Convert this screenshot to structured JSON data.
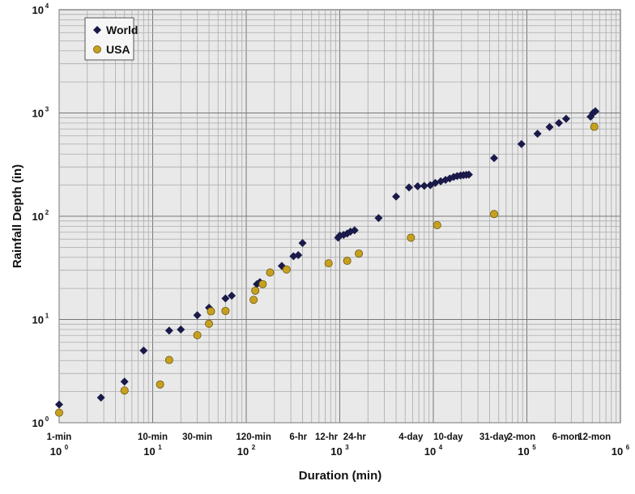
{
  "chart_data": {
    "type": "scatter",
    "xlabel": "Duration (min)",
    "ylabel": "Rainfall Depth (in)",
    "x_scale": "log",
    "y_scale": "log",
    "xlim": [
      1,
      1000000
    ],
    "ylim": [
      1,
      10000
    ],
    "grid": true,
    "legend_position": "top-left",
    "x_decade_labels": [
      "10",
      "10",
      "10",
      "10",
      "10",
      "10",
      "10"
    ],
    "x_decade_exponents": [
      "0",
      "1",
      "2",
      "3",
      "4",
      "5",
      "6"
    ],
    "y_decade_labels": [
      "10",
      "10",
      "10",
      "10",
      "10"
    ],
    "y_decade_exponents": [
      "0",
      "1",
      "2",
      "3",
      "4"
    ],
    "duration_labels": [
      {
        "text": "1-min",
        "x": 1
      },
      {
        "text": "10-min",
        "x": 10
      },
      {
        "text": "30-min",
        "x": 30
      },
      {
        "text": "120-min",
        "x": 120
      },
      {
        "text": "6-hr",
        "x": 360
      },
      {
        "text": "12-hr",
        "x": 720
      },
      {
        "text": "24-hr",
        "x": 1440
      },
      {
        "text": "4-day",
        "x": 5760
      },
      {
        "text": "10-day",
        "x": 14400
      },
      {
        "text": "31-day",
        "x": 44640
      },
      {
        "text": "2-mon",
        "x": 87600
      },
      {
        "text": "6-mon",
        "x": 262800
      },
      {
        "text": "12-mon",
        "x": 525600
      }
    ],
    "series": [
      {
        "name": "World",
        "marker": "diamond",
        "color": "#1a1a4a",
        "points": [
          [
            1,
            1.5
          ],
          [
            2.8,
            1.75
          ],
          [
            5,
            2.5
          ],
          [
            8,
            5
          ],
          [
            15,
            7.8
          ],
          [
            20,
            8
          ],
          [
            30,
            11
          ],
          [
            40,
            13
          ],
          [
            60,
            16
          ],
          [
            70,
            17
          ],
          [
            130,
            22
          ],
          [
            140,
            23
          ],
          [
            240,
            33
          ],
          [
            320,
            41
          ],
          [
            360,
            42
          ],
          [
            400,
            55
          ],
          [
            960,
            62
          ],
          [
            1000,
            65
          ],
          [
            1100,
            66
          ],
          [
            1200,
            68
          ],
          [
            1300,
            71
          ],
          [
            1440,
            73
          ],
          [
            2600,
            96
          ],
          [
            4000,
            155
          ],
          [
            5500,
            190
          ],
          [
            6800,
            195
          ],
          [
            8000,
            197
          ],
          [
            9300,
            200
          ],
          [
            10500,
            210
          ],
          [
            12000,
            218
          ],
          [
            13500,
            225
          ],
          [
            15000,
            232
          ],
          [
            16500,
            240
          ],
          [
            18000,
            245
          ],
          [
            19500,
            248
          ],
          [
            21000,
            250
          ],
          [
            22500,
            252
          ],
          [
            24000,
            253
          ],
          [
            44640,
            365
          ],
          [
            87600,
            500
          ],
          [
            130000,
            630
          ],
          [
            175000,
            730
          ],
          [
            220000,
            800
          ],
          [
            262800,
            880
          ],
          [
            480000,
            920
          ],
          [
            510000,
            1000
          ],
          [
            540000,
            1040
          ]
        ]
      },
      {
        "name": "USA",
        "marker": "circle",
        "color": "#c8a020",
        "points": [
          [
            1,
            1.25
          ],
          [
            5,
            2.05
          ],
          [
            12,
            2.35
          ],
          [
            15,
            4.05
          ],
          [
            30,
            7.05
          ],
          [
            40,
            9.1
          ],
          [
            42,
            12
          ],
          [
            60,
            12.1
          ],
          [
            120,
            15.5
          ],
          [
            125,
            19
          ],
          [
            150,
            22
          ],
          [
            180,
            28.5
          ],
          [
            270,
            30.5
          ],
          [
            760,
            35
          ],
          [
            1200,
            37
          ],
          [
            1600,
            43.5
          ],
          [
            5760,
            62
          ],
          [
            11000,
            82
          ],
          [
            44640,
            105
          ],
          [
            525600,
            735
          ]
        ]
      }
    ]
  }
}
